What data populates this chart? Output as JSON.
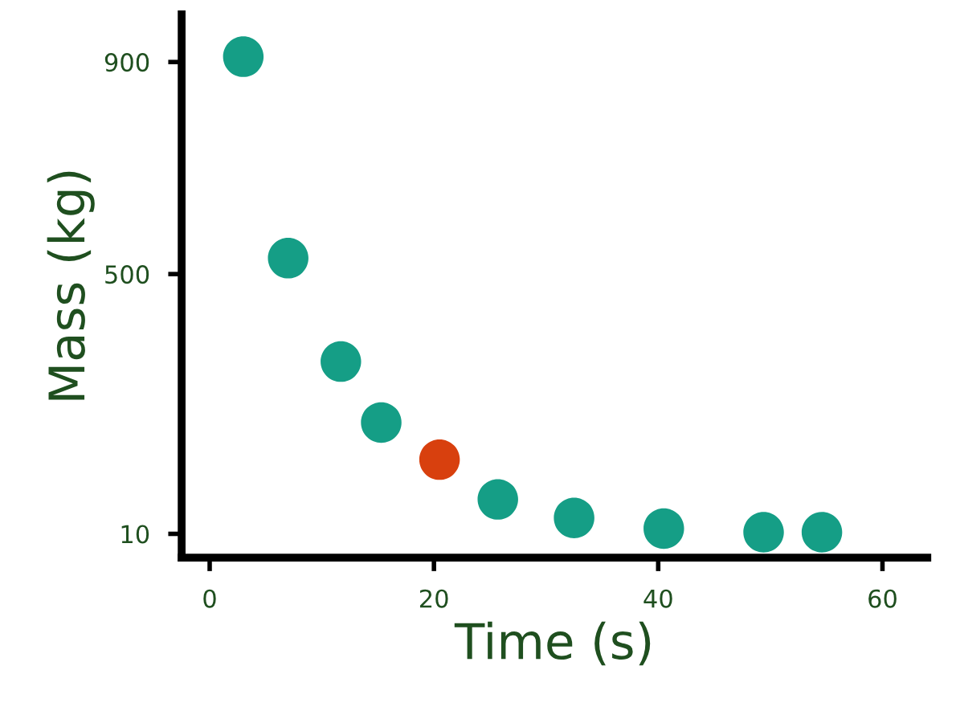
{
  "chart_data": {
    "type": "scatter",
    "xlabel": "Time (s)",
    "ylabel": "Mass (kg)",
    "x": [
      3,
      7,
      11.7,
      15.3,
      20.5,
      25.7,
      32.5,
      40.5,
      49.4,
      54.6
    ],
    "values": [
      910,
      530,
      335,
      220,
      150,
      75,
      40,
      20,
      13,
      13
    ],
    "colors": [
      "#159e86",
      "#159e86",
      "#159e86",
      "#159e86",
      "#d8400e",
      "#159e86",
      "#159e86",
      "#159e86",
      "#159e86",
      "#159e86"
    ],
    "xlim": [
      -2.5,
      64
    ],
    "ylim": [
      -35,
      990
    ],
    "xticks": [
      0,
      20,
      40,
      60
    ],
    "yticks": [
      10,
      500,
      900
    ],
    "marker": "circle",
    "grid": false,
    "legend": false
  }
}
